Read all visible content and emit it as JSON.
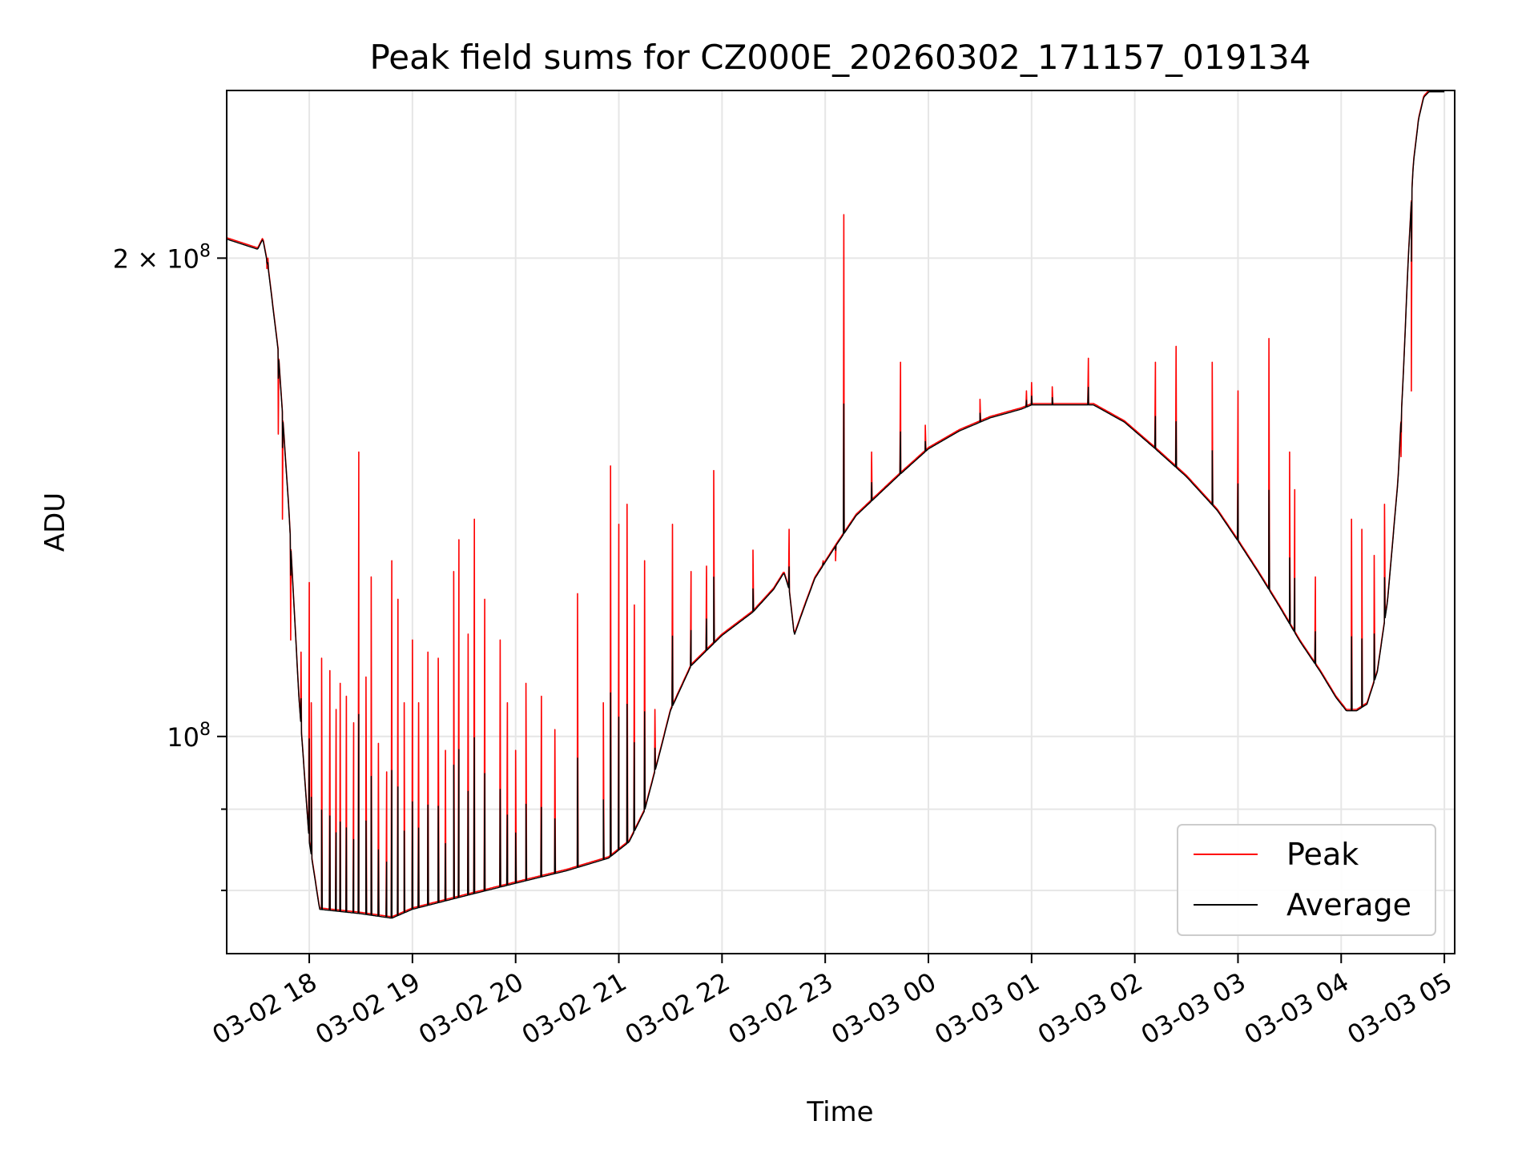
{
  "chart_data": {
    "type": "line",
    "title": "Peak field sums for CZ000E_20260302_171157_019134",
    "xlabel": "Time",
    "ylabel": "ADU",
    "y_scale": "log",
    "ylim": [
      73000000,
      255000000
    ],
    "xlim": [
      17.2,
      29.1
    ],
    "x_unit": "hours from 03-02 00:00",
    "grid": true,
    "legend_position": "lower-right",
    "x_ticks": [
      {
        "value": 18,
        "label": "03-02 18"
      },
      {
        "value": 19,
        "label": "03-02 19"
      },
      {
        "value": 20,
        "label": "03-02 20"
      },
      {
        "value": 21,
        "label": "03-02 21"
      },
      {
        "value": 22,
        "label": "03-02 22"
      },
      {
        "value": 23,
        "label": "03-02 23"
      },
      {
        "value": 24,
        "label": "03-03 00"
      },
      {
        "value": 25,
        "label": "03-03 01"
      },
      {
        "value": 26,
        "label": "03-03 02"
      },
      {
        "value": 27,
        "label": "03-03 03"
      },
      {
        "value": 28,
        "label": "03-03 04"
      },
      {
        "value": 29,
        "label": "03-03 05"
      }
    ],
    "y_ticks": [
      {
        "value": 100000000,
        "mantissa": "",
        "exponent": "8"
      },
      {
        "value": 200000000,
        "mantissa": "2 × ",
        "exponent": "8"
      }
    ],
    "y_minor_ticks": [
      80000000,
      90000000
    ],
    "series": [
      {
        "name": "Peak",
        "color": "#ff0000",
        "baseline": {
          "x": [
            17.2,
            17.5,
            17.55,
            17.6,
            17.7,
            17.8,
            17.9,
            18.0,
            18.1,
            18.5,
            18.8,
            19.0,
            19.5,
            20.0,
            20.5,
            20.9,
            21.1,
            21.25,
            21.4,
            21.5,
            21.7,
            22.0,
            22.3,
            22.5,
            22.6,
            22.65,
            22.7,
            22.8,
            22.9,
            23.1,
            23.3,
            23.7,
            24.0,
            24.3,
            24.6,
            24.9,
            25.0,
            25.3,
            25.6,
            25.9,
            26.2,
            26.5,
            26.8,
            27.0,
            27.2,
            27.4,
            27.6,
            27.8,
            27.95,
            28.05,
            28.15,
            28.25,
            28.35,
            28.45,
            28.55,
            28.6,
            28.65,
            28.7,
            28.75,
            28.8,
            28.85,
            28.9,
            28.95,
            29.0
          ],
          "y": [
            206000000,
            203000000,
            206000000,
            198000000,
            175000000,
            140000000,
            106000000,
            86000000,
            78000000,
            77500000,
            77000000,
            78000000,
            79500000,
            81000000,
            82500000,
            84000000,
            86000000,
            90000000,
            98000000,
            104000000,
            111000000,
            116000000,
            120000000,
            124000000,
            127000000,
            124000000,
            116000000,
            121000000,
            126000000,
            132000000,
            138000000,
            146000000,
            152000000,
            156000000,
            159000000,
            161000000,
            162000000,
            162000000,
            162000000,
            158000000,
            152000000,
            146000000,
            139000000,
            133000000,
            127000000,
            121000000,
            115000000,
            110000000,
            106000000,
            104000000,
            104000000,
            105000000,
            110000000,
            122000000,
            145000000,
            168000000,
            200000000,
            230000000,
            245000000,
            253000000,
            255000000,
            255000000,
            255000000,
            255000000
          ]
        },
        "spikes": [
          [
            17.59,
            197000000
          ],
          [
            17.6,
            200000000
          ],
          [
            17.7,
            155000000
          ],
          [
            17.74,
            137000000
          ],
          [
            17.82,
            115000000
          ],
          [
            17.92,
            113000000
          ],
          [
            18.0,
            125000000
          ],
          [
            18.02,
            105000000
          ],
          [
            18.12,
            112000000
          ],
          [
            18.2,
            110000000
          ],
          [
            18.26,
            104000000
          ],
          [
            18.3,
            108000000
          ],
          [
            18.36,
            106000000
          ],
          [
            18.43,
            102000000
          ],
          [
            18.48,
            151000000
          ],
          [
            18.55,
            109000000
          ],
          [
            18.6,
            126000000
          ],
          [
            18.67,
            99000000
          ],
          [
            18.75,
            95000000
          ],
          [
            18.8,
            129000000
          ],
          [
            18.86,
            122000000
          ],
          [
            18.92,
            105000000
          ],
          [
            19.0,
            115000000
          ],
          [
            19.06,
            105000000
          ],
          [
            19.15,
            113000000
          ],
          [
            19.25,
            112000000
          ],
          [
            19.32,
            98000000
          ],
          [
            19.4,
            127000000
          ],
          [
            19.45,
            133000000
          ],
          [
            19.54,
            116000000
          ],
          [
            19.6,
            137000000
          ],
          [
            19.7,
            122000000
          ],
          [
            19.85,
            115000000
          ],
          [
            19.92,
            105000000
          ],
          [
            20.0,
            98000000
          ],
          [
            20.1,
            108000000
          ],
          [
            20.25,
            106000000
          ],
          [
            20.38,
            101000000
          ],
          [
            20.6,
            123000000
          ],
          [
            20.85,
            105000000
          ],
          [
            20.92,
            148000000
          ],
          [
            21.0,
            136000000
          ],
          [
            21.08,
            140000000
          ],
          [
            21.15,
            121000000
          ],
          [
            21.25,
            129000000
          ],
          [
            21.35,
            104000000
          ],
          [
            21.52,
            136000000
          ],
          [
            21.7,
            127000000
          ],
          [
            21.85,
            128000000
          ],
          [
            21.92,
            147000000
          ],
          [
            22.3,
            131000000
          ],
          [
            22.65,
            135000000
          ],
          [
            22.98,
            129000000
          ],
          [
            23.1,
            129000000
          ],
          [
            23.18,
            213000000
          ],
          [
            23.45,
            151000000
          ],
          [
            23.73,
            172000000
          ],
          [
            23.97,
            157000000
          ],
          [
            24.5,
            163000000
          ],
          [
            24.95,
            165000000
          ],
          [
            25.0,
            167000000
          ],
          [
            25.2,
            166000000
          ],
          [
            25.55,
            173000000
          ],
          [
            26.2,
            172000000
          ],
          [
            26.4,
            176000000
          ],
          [
            26.75,
            172000000
          ],
          [
            27.0,
            165000000
          ],
          [
            27.3,
            178000000
          ],
          [
            27.5,
            151000000
          ],
          [
            27.55,
            143000000
          ],
          [
            27.75,
            126000000
          ],
          [
            28.1,
            137000000
          ],
          [
            28.2,
            135000000
          ],
          [
            28.32,
            130000000
          ],
          [
            28.42,
            140000000
          ],
          [
            28.58,
            150000000
          ],
          [
            28.68,
            165000000
          ]
        ]
      },
      {
        "name": "Average",
        "color": "#000000",
        "baseline_offset": 0.998
      }
    ]
  }
}
